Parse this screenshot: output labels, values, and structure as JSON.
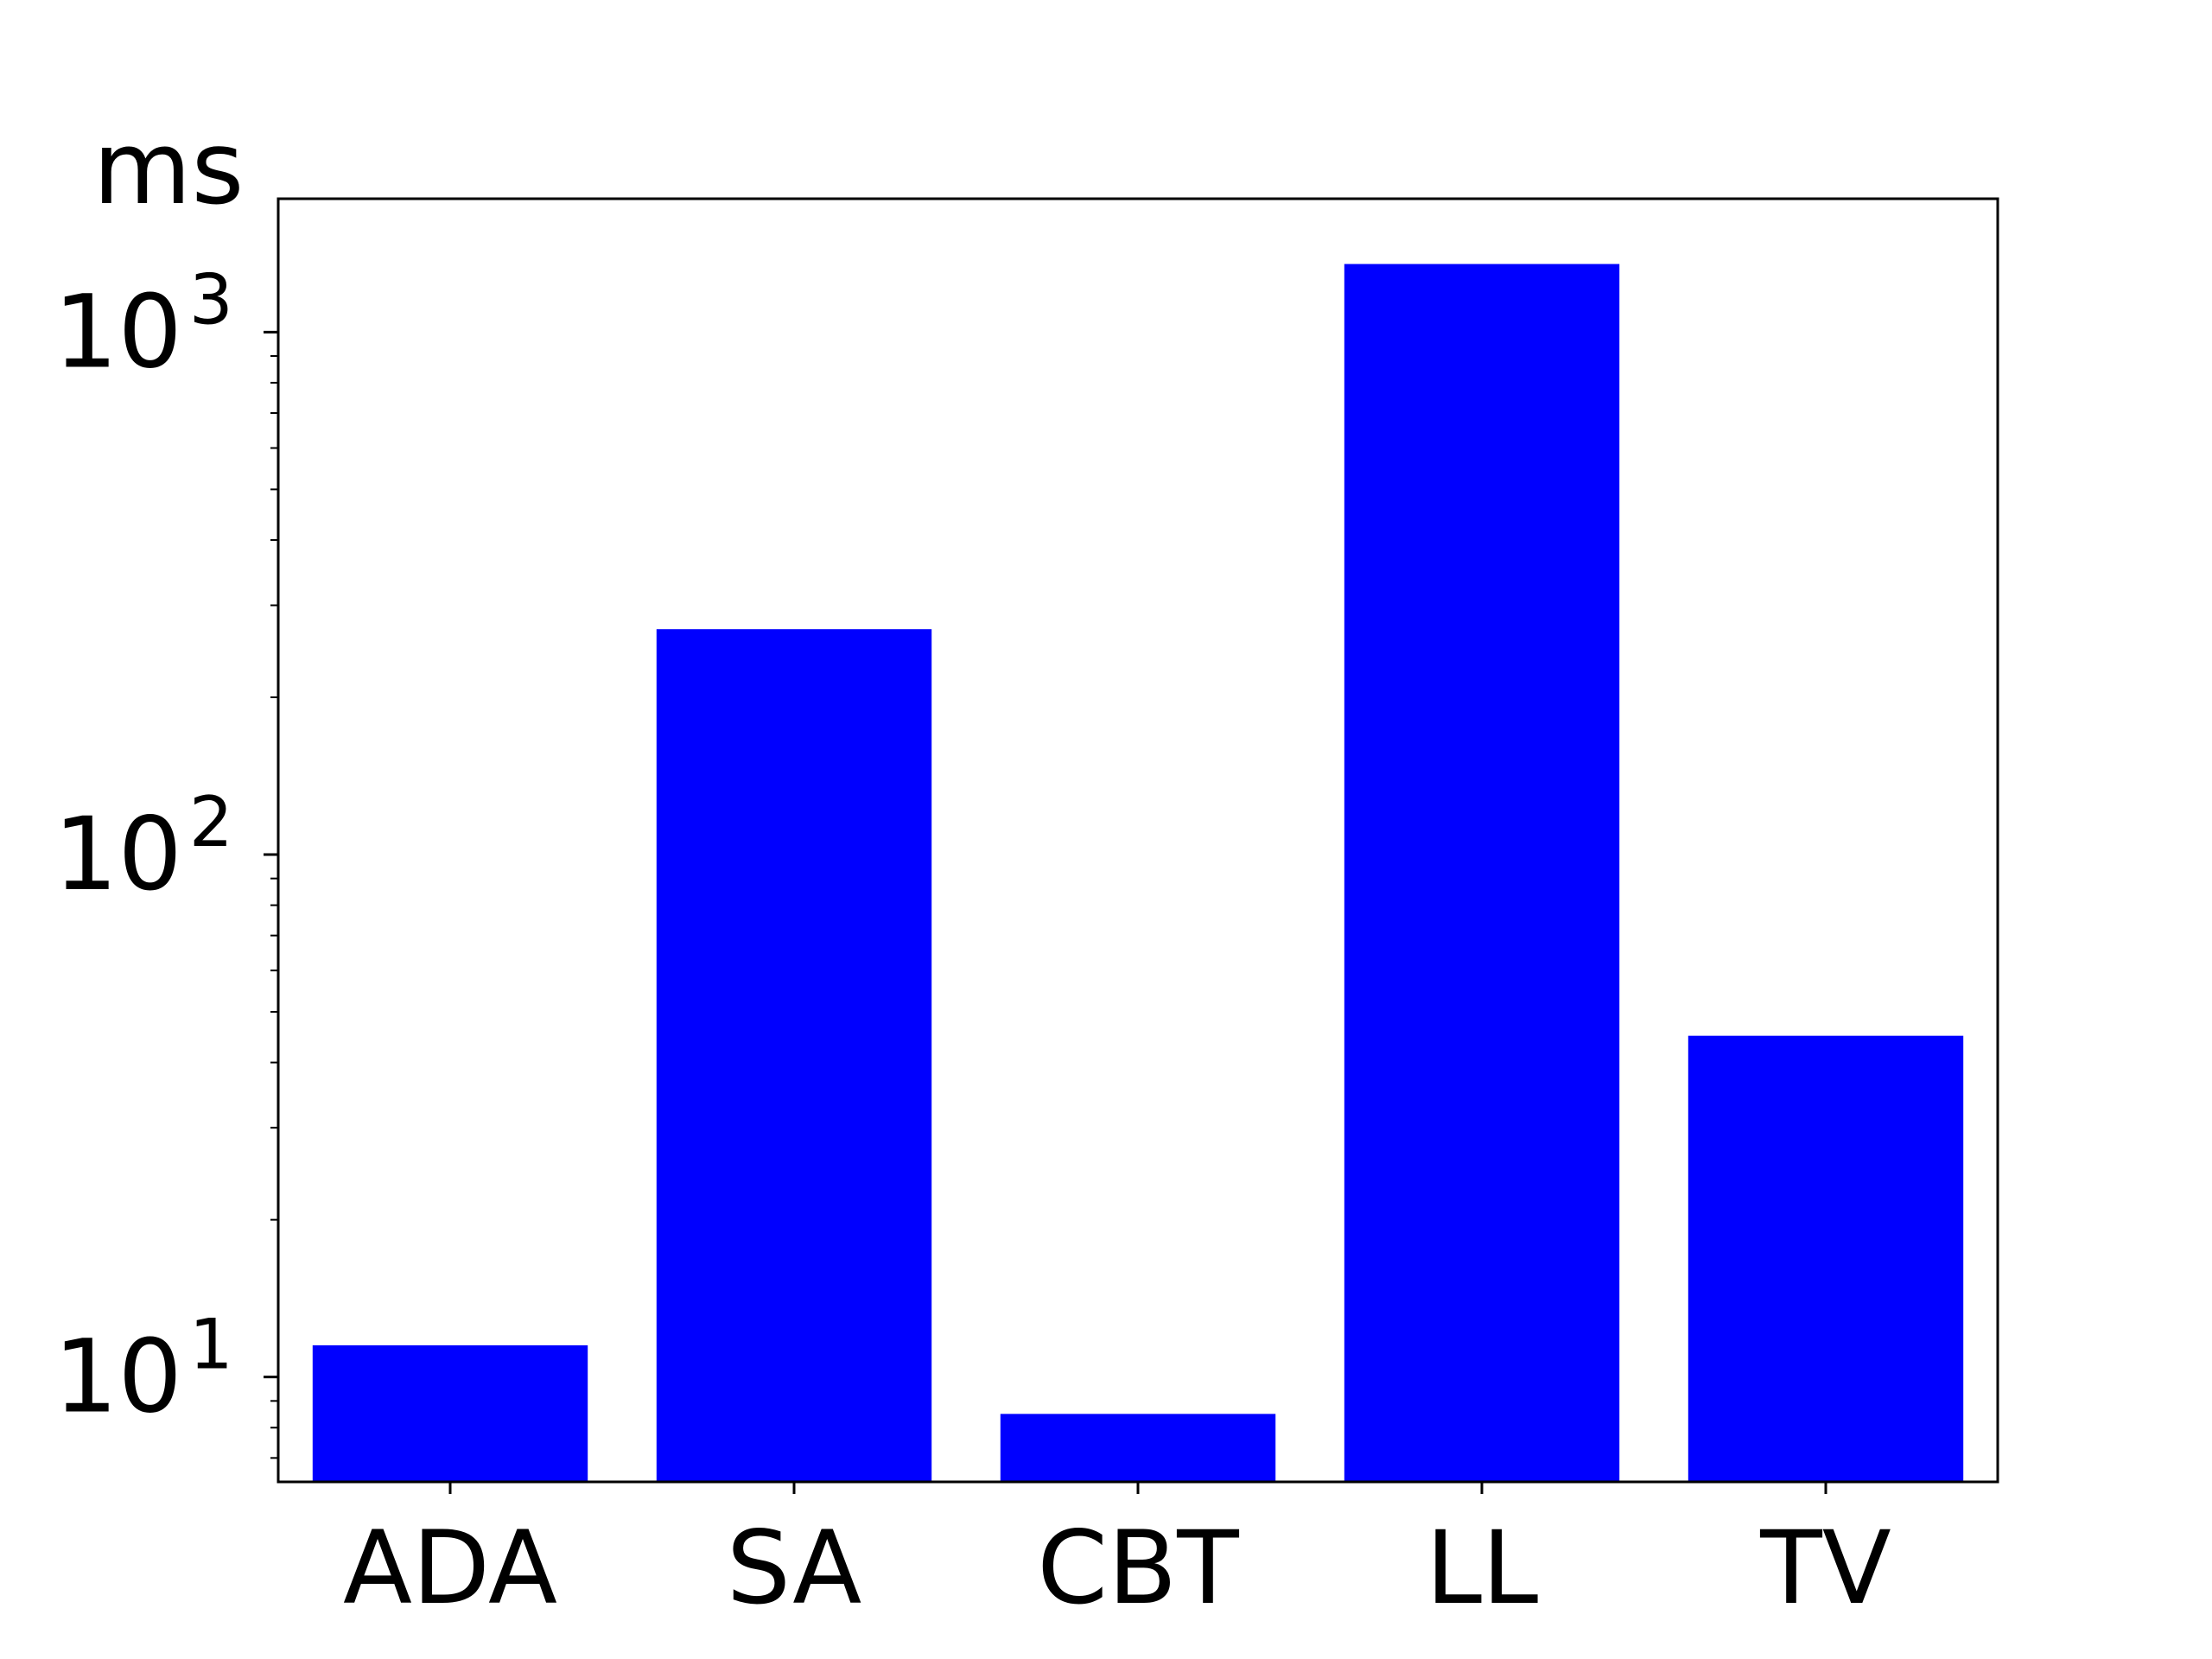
{
  "chart_data": {
    "type": "bar",
    "categories": [
      "ADA",
      "SA",
      "CBT",
      "LL",
      "TV"
    ],
    "values": [
      11.5,
      270,
      8.5,
      1350,
      45
    ],
    "ylabel": "ms",
    "yscale": "log",
    "ylim": [
      6.3,
      1800
    ],
    "yticks": [
      {
        "value": 10,
        "base": "10",
        "exp": "1"
      },
      {
        "value": 100,
        "base": "10",
        "exp": "2"
      },
      {
        "value": 1000,
        "base": "10",
        "exp": "3"
      }
    ],
    "bar_color": "#0000ff",
    "grid": false,
    "legend": "none"
  }
}
